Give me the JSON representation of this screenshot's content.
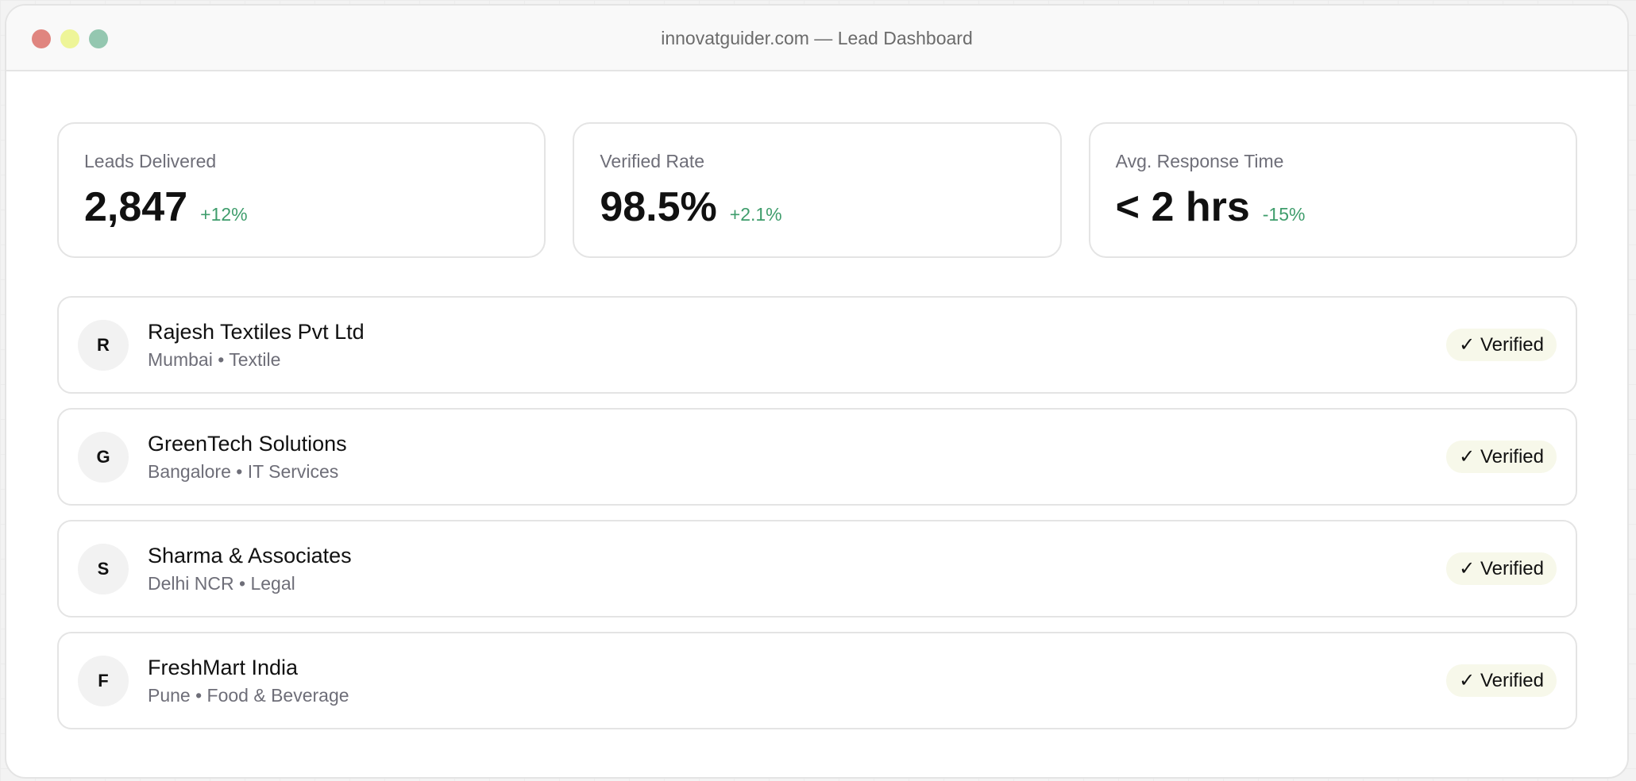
{
  "window": {
    "title": "innovatguider.com — Lead Dashboard",
    "controls": {
      "close_color": "#e0857f",
      "minimize_color": "#eef598",
      "maximize_color": "#94c7b0"
    }
  },
  "stats": [
    {
      "label": "Leads Delivered",
      "value": "2,847",
      "delta": "+12%"
    },
    {
      "label": "Verified Rate",
      "value": "98.5%",
      "delta": "+2.1%"
    },
    {
      "label": "Avg. Response Time",
      "value": "< 2 hrs",
      "delta": "-15%"
    }
  ],
  "delta_color": "#3f9d6c",
  "leads": [
    {
      "initial": "R",
      "name": "Rajesh Textiles Pvt Ltd",
      "meta": "Mumbai • Textile",
      "status": "✓ Verified"
    },
    {
      "initial": "G",
      "name": "GreenTech Solutions",
      "meta": "Bangalore • IT Services",
      "status": "✓ Verified"
    },
    {
      "initial": "S",
      "name": "Sharma & Associates",
      "meta": "Delhi NCR • Legal",
      "status": "✓ Verified"
    },
    {
      "initial": "F",
      "name": "FreshMart India",
      "meta": "Pune • Food & Beverage",
      "status": "✓ Verified"
    }
  ]
}
